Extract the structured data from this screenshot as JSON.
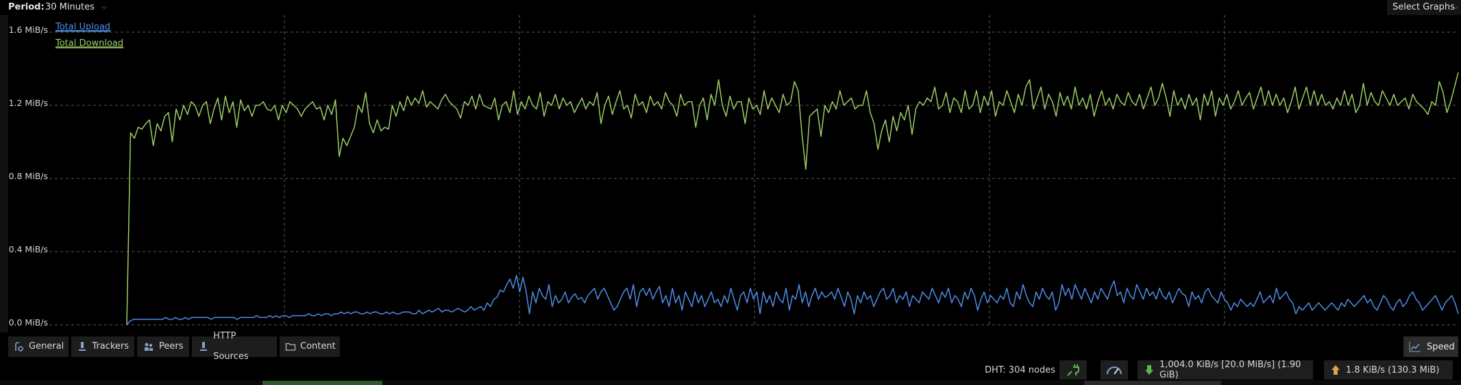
{
  "header": {
    "period_label": "Period:",
    "period_value": "30 Minutes",
    "select_graphs": "Select Graphs"
  },
  "colors": {
    "upload": "#4f8ee8",
    "download": "#9ccf64"
  },
  "chart_data": {
    "type": "line",
    "ylim": [
      0,
      1.6
    ],
    "yticks": [
      "1.6 MiB/s",
      "1.2 MiB/s",
      "0.8 MiB/s",
      "0.4 MiB/s",
      "0.0 MiB/s"
    ],
    "ytick_values": [
      1.6,
      1.2,
      0.8,
      0.4,
      0.0
    ],
    "legend": [
      "Total Upload",
      "Total Download"
    ],
    "legend_placement": "top-left",
    "grid": true,
    "series": [
      {
        "name": "Total Download",
        "values": [
          0.0,
          1.05,
          1.02,
          1.08,
          1.07,
          1.1,
          1.12,
          0.98,
          1.1,
          1.06,
          1.14,
          1.16,
          1.0,
          1.18,
          1.12,
          1.2,
          1.15,
          1.22,
          1.2,
          1.14,
          1.2,
          1.22,
          1.1,
          1.18,
          1.24,
          1.12,
          1.25,
          1.16,
          1.22,
          1.08,
          1.23,
          1.17,
          1.2,
          1.14,
          1.2,
          1.2,
          1.22,
          1.18,
          1.17,
          1.2,
          1.12,
          1.2,
          1.16,
          1.22,
          1.2,
          1.18,
          1.14,
          1.18,
          1.2,
          1.22,
          1.18,
          1.19,
          1.12,
          1.2,
          1.15,
          1.23,
          0.92,
          1.02,
          0.98,
          1.03,
          1.08,
          1.2,
          1.16,
          1.27,
          1.1,
          1.05,
          1.12,
          1.06,
          1.08,
          1.07,
          1.2,
          1.14,
          1.22,
          1.17,
          1.25,
          1.2,
          1.24,
          1.21,
          1.28,
          1.19,
          1.22,
          1.2,
          1.18,
          1.23,
          1.26,
          1.22,
          1.2,
          1.18,
          1.13,
          1.22,
          1.2,
          1.25,
          1.18,
          1.26,
          1.2,
          1.19,
          1.18,
          1.24,
          1.12,
          1.2,
          1.22,
          1.16,
          1.28,
          1.15,
          1.22,
          1.18,
          1.25,
          1.2,
          1.18,
          1.27,
          1.14,
          1.22,
          1.2,
          1.26,
          1.18,
          1.24,
          1.2,
          1.22,
          1.16,
          1.2,
          1.24,
          1.18,
          1.22,
          1.2,
          1.27,
          1.1,
          1.2,
          1.25,
          1.15,
          1.22,
          1.28,
          1.18,
          1.2,
          1.13,
          1.26,
          1.2,
          1.22,
          1.16,
          1.25,
          1.2,
          1.22,
          1.18,
          1.27,
          1.22,
          1.2,
          1.14,
          1.26,
          1.2,
          1.22,
          1.22,
          1.08,
          1.2,
          1.24,
          1.12,
          1.26,
          1.2,
          1.34,
          1.2,
          1.14,
          1.25,
          1.18,
          1.22,
          1.22,
          1.1,
          1.24,
          1.18,
          1.2,
          1.15,
          1.28,
          1.18,
          1.24,
          1.2,
          1.16,
          1.26,
          1.2,
          1.22,
          1.33,
          1.28,
          1.04,
          0.85,
          1.14,
          1.16,
          1.18,
          1.03,
          1.2,
          1.16,
          1.22,
          1.18,
          1.28,
          1.2,
          1.22,
          1.24,
          1.18,
          1.2,
          1.2,
          1.28,
          1.16,
          1.1,
          0.96,
          1.06,
          1.12,
          1.0,
          1.14,
          1.06,
          1.16,
          1.12,
          1.2,
          1.04,
          1.18,
          1.22,
          1.2,
          1.24,
          1.22,
          1.3,
          1.18,
          1.2,
          1.27,
          1.16,
          1.24,
          1.22,
          1.16,
          1.28,
          1.18,
          1.2,
          1.28,
          1.16,
          1.25,
          1.2,
          1.28,
          1.14,
          1.22,
          1.2,
          1.28,
          1.22,
          1.16,
          1.26,
          1.2,
          1.3,
          1.34,
          1.18,
          1.24,
          1.3,
          1.18,
          1.26,
          1.22,
          1.14,
          1.27,
          1.2,
          1.25,
          1.18,
          1.3,
          1.2,
          1.24,
          1.18,
          1.26,
          1.14,
          1.22,
          1.28,
          1.2,
          1.24,
          1.18,
          1.26,
          1.22,
          1.2,
          1.27,
          1.22,
          1.2,
          1.26,
          1.18,
          1.24,
          1.3,
          1.2,
          1.24,
          1.32,
          1.24,
          1.14,
          1.28,
          1.2,
          1.24,
          1.18,
          1.26,
          1.2,
          1.24,
          1.12,
          1.26,
          1.2,
          1.28,
          1.14,
          1.24,
          1.2,
          1.26,
          1.18,
          1.22,
          1.28,
          1.2,
          1.24,
          1.27,
          1.18,
          1.24,
          1.3,
          1.2,
          1.28,
          1.2,
          1.26,
          1.2,
          1.24,
          1.16,
          1.22,
          1.3,
          1.18,
          1.24,
          1.3,
          1.2,
          1.28,
          1.2,
          1.26,
          1.2,
          1.22,
          1.18,
          1.24,
          1.2,
          1.28,
          1.2,
          1.26,
          1.16,
          1.2,
          1.32,
          1.2,
          1.27,
          1.22,
          1.2,
          1.28,
          1.24,
          1.2,
          1.26,
          1.2,
          1.22,
          1.24,
          1.18,
          1.26,
          1.22,
          1.2,
          1.18,
          1.15,
          1.22,
          1.2,
          1.33,
          1.27,
          1.16,
          1.22,
          1.3,
          1.38
        ]
      },
      {
        "name": "Total Upload",
        "values": [
          0.0,
          0.02,
          0.03,
          0.03,
          0.03,
          0.03,
          0.03,
          0.03,
          0.03,
          0.03,
          0.03,
          0.03,
          0.04,
          0.03,
          0.03,
          0.04,
          0.03,
          0.03,
          0.04,
          0.03,
          0.04,
          0.04,
          0.04,
          0.04,
          0.04,
          0.04,
          0.03,
          0.04,
          0.04,
          0.04,
          0.04,
          0.04,
          0.04,
          0.04,
          0.03,
          0.04,
          0.04,
          0.04,
          0.04,
          0.04,
          0.05,
          0.04,
          0.04,
          0.04,
          0.05,
          0.04,
          0.05,
          0.04,
          0.05,
          0.05,
          0.04,
          0.05,
          0.05,
          0.05,
          0.05,
          0.05,
          0.06,
          0.05,
          0.05,
          0.06,
          0.05,
          0.06,
          0.06,
          0.05,
          0.06,
          0.06,
          0.07,
          0.06,
          0.07,
          0.06,
          0.07,
          0.07,
          0.06,
          0.06,
          0.07,
          0.06,
          0.07,
          0.07,
          0.06,
          0.06,
          0.07,
          0.06,
          0.07,
          0.06,
          0.06,
          0.07,
          0.07,
          0.07,
          0.06,
          0.06,
          0.08,
          0.06,
          0.07,
          0.08,
          0.07,
          0.08,
          0.09,
          0.07,
          0.08,
          0.08,
          0.07,
          0.08,
          0.09,
          0.08,
          0.07,
          0.08,
          0.1,
          0.08,
          0.09,
          0.1,
          0.08,
          0.12,
          0.1,
          0.14,
          0.15,
          0.19,
          0.18,
          0.22,
          0.25,
          0.2,
          0.27,
          0.18,
          0.26,
          0.18,
          0.06,
          0.18,
          0.12,
          0.2,
          0.16,
          0.14,
          0.22,
          0.1,
          0.16,
          0.12,
          0.14,
          0.18,
          0.12,
          0.15,
          0.17,
          0.14,
          0.15,
          0.12,
          0.16,
          0.18,
          0.2,
          0.14,
          0.18,
          0.2,
          0.16,
          0.12,
          0.08,
          0.1,
          0.14,
          0.18,
          0.2,
          0.14,
          0.22,
          0.1,
          0.18,
          0.2,
          0.16,
          0.2,
          0.14,
          0.18,
          0.21,
          0.12,
          0.16,
          0.1,
          0.2,
          0.12,
          0.16,
          0.08,
          0.18,
          0.14,
          0.1,
          0.18,
          0.12,
          0.16,
          0.1,
          0.14,
          0.18,
          0.12,
          0.14,
          0.1,
          0.16,
          0.12,
          0.2,
          0.14,
          0.08,
          0.16,
          0.18,
          0.12,
          0.2,
          0.14,
          0.18,
          0.06,
          0.18,
          0.12,
          0.16,
          0.1,
          0.18,
          0.14,
          0.12,
          0.2,
          0.08,
          0.16,
          0.14,
          0.22,
          0.12,
          0.18,
          0.1,
          0.16,
          0.2,
          0.14,
          0.18,
          0.15,
          0.16,
          0.18,
          0.14,
          0.2,
          0.15,
          0.1,
          0.18,
          0.14,
          0.06,
          0.16,
          0.12,
          0.18,
          0.14,
          0.16,
          0.1,
          0.14,
          0.18,
          0.2,
          0.14,
          0.16,
          0.2,
          0.12,
          0.16,
          0.14,
          0.18,
          0.1,
          0.16,
          0.14,
          0.12,
          0.18,
          0.16,
          0.14,
          0.2,
          0.16,
          0.12,
          0.18,
          0.15,
          0.2,
          0.12,
          0.16,
          0.14,
          0.1,
          0.18,
          0.14,
          0.2,
          0.16,
          0.08,
          0.14,
          0.18,
          0.12,
          0.16,
          0.14,
          0.12,
          0.16,
          0.14,
          0.2,
          0.12,
          0.1,
          0.18,
          0.14,
          0.22,
          0.16,
          0.12,
          0.1,
          0.18,
          0.14,
          0.2,
          0.16,
          0.14,
          0.18,
          0.08,
          0.12,
          0.22,
          0.16,
          0.2,
          0.14,
          0.22,
          0.18,
          0.14,
          0.2,
          0.16,
          0.12,
          0.18,
          0.14,
          0.2,
          0.17,
          0.14,
          0.2,
          0.24,
          0.16,
          0.18,
          0.12,
          0.2,
          0.16,
          0.14,
          0.22,
          0.18,
          0.14,
          0.2,
          0.16,
          0.18,
          0.14,
          0.2,
          0.16,
          0.14,
          0.18,
          0.12,
          0.16,
          0.2,
          0.17,
          0.16,
          0.1,
          0.18,
          0.14,
          0.16,
          0.12,
          0.18,
          0.2,
          0.16,
          0.14,
          0.12,
          0.18,
          0.14,
          0.12,
          0.08,
          0.12,
          0.1,
          0.14,
          0.12,
          0.1,
          0.12,
          0.1,
          0.14,
          0.18,
          0.12,
          0.14,
          0.16,
          0.12,
          0.2,
          0.14,
          0.16,
          0.18,
          0.14,
          0.12,
          0.06,
          0.1,
          0.08,
          0.1,
          0.12,
          0.08,
          0.1,
          0.12,
          0.1,
          0.08,
          0.1,
          0.12,
          0.1,
          0.08,
          0.12,
          0.1,
          0.14,
          0.12,
          0.1,
          0.12,
          0.14,
          0.16,
          0.12,
          0.14,
          0.1,
          0.08,
          0.12,
          0.16,
          0.14,
          0.1,
          0.08,
          0.12,
          0.14,
          0.1,
          0.12,
          0.16,
          0.18,
          0.14,
          0.12,
          0.08,
          0.1,
          0.12,
          0.14,
          0.16,
          0.12,
          0.08,
          0.12,
          0.14,
          0.16,
          0.12,
          0.06
        ]
      }
    ]
  },
  "tabs": [
    {
      "label": "General",
      "icon": "general-icon"
    },
    {
      "label": "Trackers",
      "icon": "trackers-icon"
    },
    {
      "label": "Peers",
      "icon": "peers-icon"
    },
    {
      "label": "HTTP Sources",
      "icon": "http-sources-icon"
    },
    {
      "label": "Content",
      "icon": "folder-icon"
    }
  ],
  "speed_tab": {
    "label": "Speed",
    "icon": "speed-chart-icon"
  },
  "status": {
    "dht": "DHT: 304 nodes",
    "download": "1,004.0 KiB/s [20.0 MiB/s] (1.90 GiB)",
    "upload": "1.8 KiB/s (130.3 MiB)"
  }
}
